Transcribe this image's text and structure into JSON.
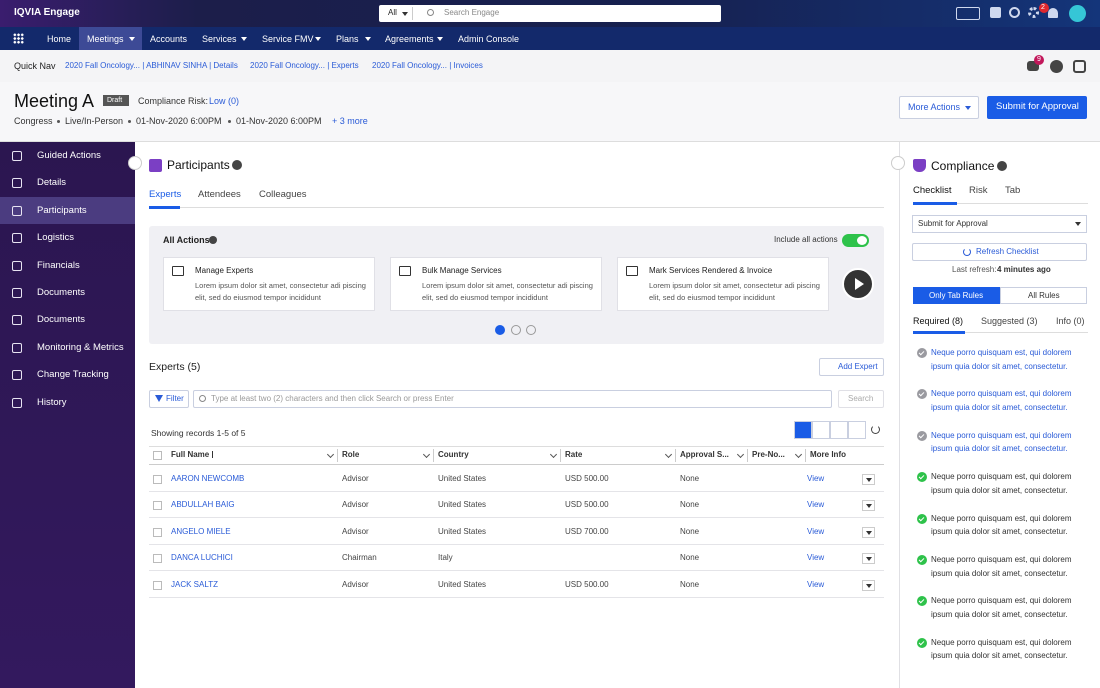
{
  "header": {
    "app_name": "IQVIA Engage",
    "search_scope": "All",
    "search_placeholder": "Search Engage",
    "notification_count": "2"
  },
  "nav": {
    "active_index": 1,
    "items": [
      {
        "label": "Home",
        "dropdown": false
      },
      {
        "label": "Meetings",
        "dropdown": true
      },
      {
        "label": "Accounts",
        "dropdown": false
      },
      {
        "label": "Services",
        "dropdown": true
      },
      {
        "label": "Service FMV",
        "dropdown": true
      },
      {
        "label": "Plans",
        "dropdown": true
      },
      {
        "label": "Agreements",
        "dropdown": true
      },
      {
        "label": "Admin Console",
        "dropdown": false
      }
    ]
  },
  "quick_nav": {
    "label": "Quick Nav",
    "links": [
      "2020 Fall Oncology... | ABHINAV SINHA | Details",
      "2020 Fall Oncology... | Experts",
      "2020 Fall Oncology... | Invoices"
    ],
    "message_count": "9"
  },
  "meeting": {
    "title": "Meeting A",
    "status": "Draft",
    "compliance_label": "Compliance Risk:",
    "compliance_value": "Low (0)",
    "details": [
      "Congress",
      "Live/In-Person",
      "01-Nov-2020 6:00PM",
      "01-Nov-2020 6:00PM"
    ],
    "more": "+ 3 more",
    "more_actions": "More Actions",
    "submit": "Submit for Approval"
  },
  "sidebar": {
    "active_index": 2,
    "items": [
      "Guided Actions",
      "Details",
      "Participants",
      "Logistics",
      "Financials",
      "Documents",
      "Documents",
      "Monitoring & Metrics",
      "Change Tracking",
      "History"
    ]
  },
  "participants": {
    "title": "Participants",
    "tabs": [
      "Experts",
      "Attendees",
      "Colleagues"
    ],
    "active_tab": 0,
    "all_actions": "All Actions",
    "include_all": "Include all actions",
    "cards": [
      {
        "title": "Manage Experts",
        "text": "Lorem ipsum dolor sit amet, consectetur adi piscing elit, sed do eiusmod tempor incididunt"
      },
      {
        "title": "Bulk Manage Services",
        "text": "Lorem ipsum dolor sit amet, consectetur adi piscing elit, sed do eiusmod tempor incididunt"
      },
      {
        "title": "Mark Services Rendered & Invoice",
        "text": "Lorem ipsum dolor sit amet, consectetur adi piscing elit, sed do eiusmod tempor incididunt"
      }
    ]
  },
  "experts": {
    "title": "Experts (5)",
    "add": "Add Expert",
    "filter": "Filter",
    "search_placeholder": "Type at least two (2) characters and then click Search or press Enter",
    "search": "Search",
    "showing": "Showing records 1-5 of 5",
    "table": {
      "columns": [
        "Full Name",
        "Role",
        "Country",
        "Rate",
        "Approval S...",
        "Pre-No...",
        "More Info"
      ],
      "rows": [
        {
          "full_name": "AARON NEWCOMB",
          "role": "Advisor",
          "country": "United States",
          "rate": "USD 500.00",
          "approval_status": "None",
          "more_info": "View"
        },
        {
          "full_name": "ABDULLAH BAIG",
          "role": "Advisor",
          "country": "United States",
          "rate": "USD 500.00",
          "approval_status": "None",
          "more_info": "View"
        },
        {
          "full_name": "ANGELO MIELE",
          "role": "Advisor",
          "country": "United States",
          "rate": "USD 700.00",
          "approval_status": "None",
          "more_info": "View"
        },
        {
          "full_name": "DANCA LUCHICI",
          "role": "Chairman",
          "country": "Italy",
          "rate": null,
          "approval_status": "None",
          "more_info": "View"
        },
        {
          "full_name": "JACK SALTZ",
          "role": "Advisor",
          "country": "United States",
          "rate": "USD 500.00",
          "approval_status": "None",
          "more_info": "View"
        }
      ]
    }
  },
  "compliance": {
    "title": "Compliance",
    "tabs": [
      "Checklist",
      "Risk",
      "Tab"
    ],
    "active_tab": 0,
    "select": "Submit for Approval",
    "refresh": "Refresh Checklist",
    "last_refresh_label": "Last refresh:",
    "last_refresh_value": "4 minutes ago",
    "scope": [
      "Only Tab Rules",
      "All Rules"
    ],
    "active_scope": 0,
    "rule_tabs": [
      "Required (8)",
      "Suggested (3)",
      "Info (0)"
    ],
    "active_rule_tab": 0,
    "items": [
      {
        "text": "Neque porro quisquam est, qui dolorem ipsum quia dolor sit amet, consectetur.",
        "passed": false
      },
      {
        "text": "Neque porro quisquam est, qui dolorem ipsum quia dolor sit amet, consectetur.",
        "passed": false
      },
      {
        "text": "Neque porro quisquam est, qui dolorem ipsum quia dolor sit amet, consectetur.",
        "passed": false
      },
      {
        "text": "Neque porro quisquam est, qui dolorem ipsum quia dolor sit amet, consectetur.",
        "passed": true
      },
      {
        "text": "Neque porro quisquam est, qui dolorem ipsum quia dolor sit amet, consectetur.",
        "passed": true
      },
      {
        "text": "Neque porro quisquam est, qui dolorem ipsum quia dolor sit amet, consectetur.",
        "passed": true
      },
      {
        "text": "Neque porro quisquam est, qui dolorem ipsum quia dolor sit amet, consectetur.",
        "passed": true
      },
      {
        "text": "Neque porro quisquam est, qui dolorem ipsum quia dolor sit amet, consectetur.",
        "passed": true
      }
    ]
  }
}
